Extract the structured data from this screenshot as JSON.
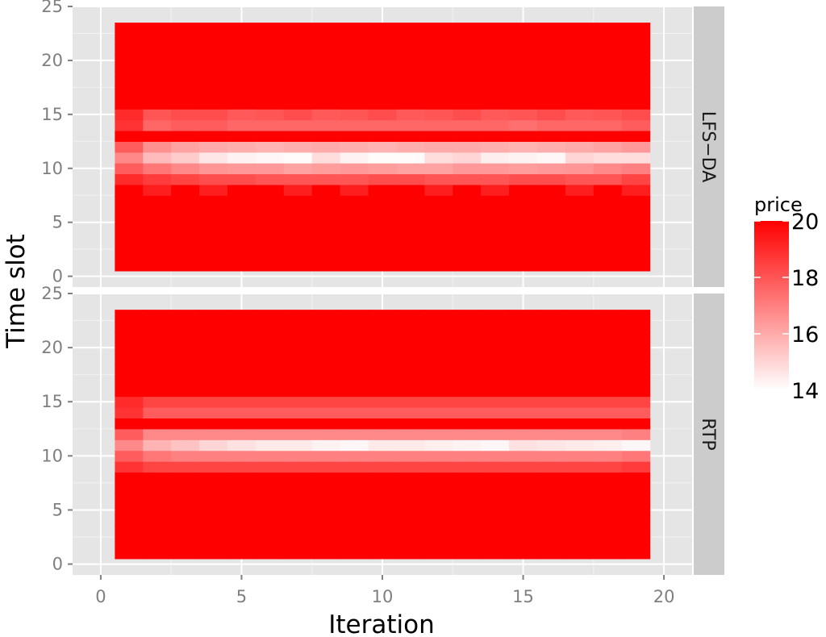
{
  "chart_data": {
    "type": "heatmap",
    "xlabel": "Iteration",
    "ylabel": "Time slot",
    "xlim": [
      -1,
      21
    ],
    "ylim": [
      -1,
      25
    ],
    "x_ticks": [
      "0",
      "5",
      "10",
      "15",
      "20"
    ],
    "y_ticks": [
      "0",
      "5",
      "10",
      "15",
      "20",
      "25"
    ],
    "x": [
      1,
      2,
      3,
      4,
      5,
      6,
      7,
      8,
      9,
      10,
      11,
      12,
      13,
      14,
      15,
      16,
      17,
      18,
      19
    ],
    "y": [
      1,
      2,
      3,
      4,
      5,
      6,
      7,
      8,
      9,
      10,
      11,
      12,
      13,
      14,
      15,
      16,
      17,
      18,
      19,
      20,
      21,
      22,
      23
    ],
    "panels": [
      {
        "label": "LFS−DA",
        "rows": [
          {
            "y": 8,
            "values": [
              20,
              19.3,
              20,
              19.3,
              20,
              20,
              19.3,
              20,
              19.3,
              20,
              20,
              19.3,
              20,
              19.3,
              20,
              20,
              19.3,
              20,
              19.3
            ]
          },
          {
            "y": 9,
            "values": [
              19,
              18.6,
              18.4,
              18.2,
              18.2,
              18,
              18,
              18,
              18,
              18.2,
              18.2,
              18,
              18,
              18,
              18.2,
              18.2,
              18,
              18,
              18.4
            ]
          },
          {
            "y": 10,
            "values": [
              17.8,
              17.2,
              16.8,
              16.5,
              16.4,
              16.4,
              16.2,
              16.3,
              16.4,
              16.3,
              16.2,
              16.2,
              16.4,
              16.4,
              16.3,
              16.4,
              16.5,
              16.8,
              17
            ]
          },
          {
            "y": 11,
            "values": [
              16.8,
              15.6,
              15.2,
              14.6,
              14.3,
              14.2,
              14.1,
              14.8,
              14.3,
              14.1,
              14.1,
              14.8,
              15,
              14.4,
              14.3,
              14.2,
              15,
              14.8,
              14.8
            ]
          },
          {
            "y": 12,
            "values": [
              17.8,
              16.6,
              16.2,
              16,
              15.9,
              15.8,
              15.9,
              16,
              15.9,
              15.8,
              15.9,
              16,
              16,
              15.9,
              15.8,
              15.9,
              16,
              16.2,
              16.4
            ]
          },
          {
            "y": 13,
            "values": [
              20,
              20,
              20,
              20,
              20,
              20,
              20,
              20,
              20,
              20,
              20,
              20,
              20,
              20,
              20,
              20,
              20,
              20,
              20
            ]
          },
          {
            "y": 14,
            "values": [
              18.8,
              17.6,
              17.8,
              17.8,
              17.6,
              17.6,
              17.6,
              17.6,
              17.6,
              17.6,
              17.6,
              17.6,
              17.6,
              17.6,
              17.4,
              17.6,
              17.6,
              17.6,
              17.8
            ]
          },
          {
            "y": 15,
            "values": [
              19,
              18,
              18.2,
              18.2,
              17.9,
              18,
              18.2,
              17.9,
              18,
              18.2,
              17.9,
              18,
              18.2,
              17.9,
              18,
              18.2,
              17.9,
              18,
              18.2
            ]
          }
        ]
      },
      {
        "label": "RTP",
        "rows": [
          {
            "y": 9,
            "values": [
              18.8,
              18.4,
              18.4,
              18.4,
              18.4,
              18.4,
              18.4,
              18.4,
              18.4,
              18.4,
              18.4,
              18.4,
              18.4,
              18.4,
              18.4,
              18.4,
              18.4,
              18.4,
              18.6
            ]
          },
          {
            "y": 10,
            "values": [
              17.8,
              17.2,
              17,
              17,
              17,
              17,
              17,
              17,
              17,
              17,
              17,
              17,
              17,
              17,
              17,
              17,
              17,
              17,
              17.2
            ]
          },
          {
            "y": 11,
            "values": [
              16.8,
              15.8,
              15.4,
              15,
              14.7,
              14.5,
              14.5,
              14.3,
              14.2,
              14.5,
              14.5,
              14.4,
              14.3,
              14.2,
              14.7,
              14.6,
              14.5,
              14.4,
              14.2
            ]
          },
          {
            "y": 12,
            "values": [
              17.8,
              16.8,
              16.8,
              16.8,
              16.8,
              16.8,
              16.8,
              16.8,
              16.8,
              16.8,
              16.8,
              16.8,
              16.8,
              16.8,
              16.8,
              16.8,
              16.8,
              16.8,
              17
            ]
          },
          {
            "y": 13,
            "values": [
              20,
              20,
              20,
              20,
              20,
              20,
              20,
              20,
              20,
              20,
              20,
              20,
              20,
              20,
              20,
              20,
              20,
              20,
              20
            ]
          },
          {
            "y": 14,
            "values": [
              18.8,
              17.8,
              17.8,
              17.8,
              17.8,
              17.8,
              17.8,
              17.8,
              17.8,
              17.8,
              17.8,
              17.8,
              17.8,
              17.8,
              17.8,
              17.8,
              17.8,
              17.8,
              17.8
            ]
          },
          {
            "y": 15,
            "values": [
              19,
              18.4,
              18.4,
              18.4,
              18.4,
              18.4,
              18.4,
              18.4,
              18.4,
              18.4,
              18.4,
              18.4,
              18.4,
              18.4,
              18.4,
              18.4,
              18.4,
              18.4,
              18.4
            ]
          }
        ]
      }
    ],
    "default_value": 20,
    "legend": {
      "title": "price",
      "ticks": [
        "20",
        "18",
        "16",
        "14"
      ],
      "min": 14,
      "max": 20,
      "low_color": "#ffffff",
      "high_color": "#ff0000",
      "position": "right"
    },
    "grid": true,
    "panel_background": "#e5e5e5",
    "strip_background": "#cccccc"
  }
}
